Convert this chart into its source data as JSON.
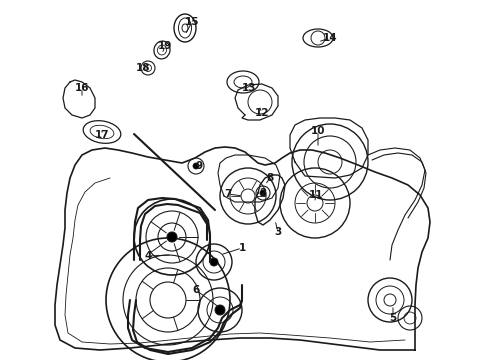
{
  "background_color": "#ffffff",
  "line_color": "#1a1a1a",
  "fig_width": 4.9,
  "fig_height": 3.6,
  "dpi": 100,
  "labels": [
    {
      "num": "1",
      "ix": 242,
      "iy": 248
    },
    {
      "num": "2",
      "ix": 263,
      "iy": 193
    },
    {
      "num": "3",
      "ix": 278,
      "iy": 232
    },
    {
      "num": "4",
      "ix": 148,
      "iy": 256
    },
    {
      "num": "5",
      "ix": 393,
      "iy": 318
    },
    {
      "num": "6",
      "ix": 196,
      "iy": 290
    },
    {
      "num": "7",
      "ix": 228,
      "iy": 194
    },
    {
      "num": "8",
      "ix": 270,
      "iy": 178
    },
    {
      "num": "9",
      "ix": 199,
      "iy": 166
    },
    {
      "num": "10",
      "ix": 318,
      "iy": 131
    },
    {
      "num": "11",
      "ix": 316,
      "iy": 195
    },
    {
      "num": "12",
      "ix": 262,
      "iy": 113
    },
    {
      "num": "13",
      "ix": 249,
      "iy": 88
    },
    {
      "num": "14",
      "ix": 330,
      "iy": 38
    },
    {
      "num": "15",
      "ix": 192,
      "iy": 22
    },
    {
      "num": "16",
      "ix": 82,
      "iy": 88
    },
    {
      "num": "17",
      "ix": 102,
      "iy": 135
    },
    {
      "num": "18",
      "ix": 143,
      "iy": 68
    },
    {
      "num": "19",
      "ix": 165,
      "iy": 46
    }
  ]
}
